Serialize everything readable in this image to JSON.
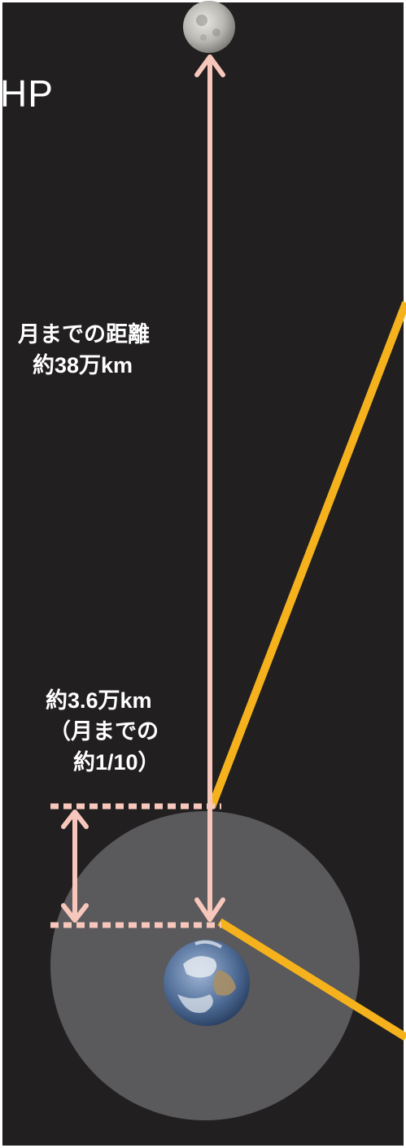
{
  "clipped_header_text": "HP",
  "moon_distance_label": {
    "line1": "月までの距離",
    "line2": "約38万km"
  },
  "altitude_label": {
    "line1": "約3.6万km",
    "line2": "（月までの",
    "line3": "約1/10）"
  },
  "colors": {
    "background": "#221f20",
    "arrow": "#f8c7bc",
    "sunbeam": "#f5b21c",
    "earth_zone": "#5a595b",
    "label": "#ffffff"
  },
  "icons": [
    "moon-icon",
    "earth-icon"
  ]
}
